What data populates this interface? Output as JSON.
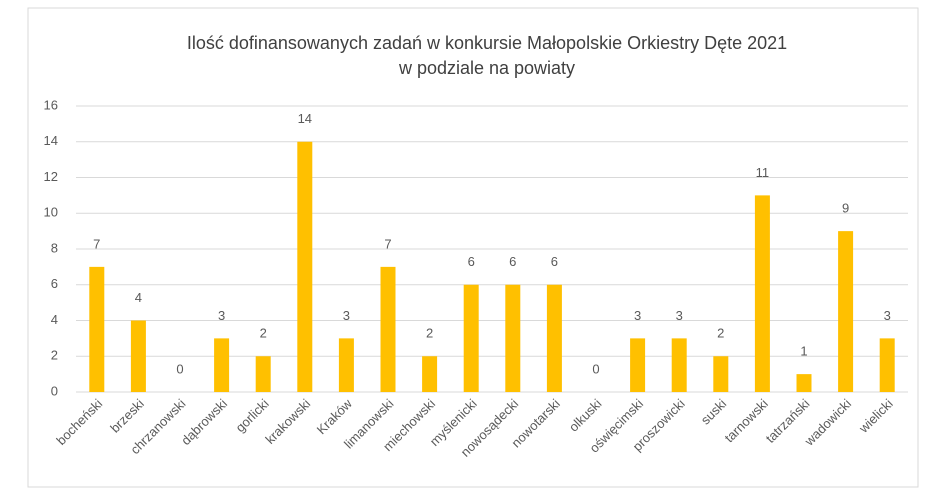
{
  "chart_data": {
    "type": "bar",
    "title": [
      "Ilość dofinansowanych zadań w konkursie Małopolskie Orkiestry Dęte 2021",
      "w podziale na powiaty"
    ],
    "categories": [
      "bocheński",
      "brzeski",
      "chrzanowski",
      "dąbrowski",
      "gorlicki",
      "krakowski",
      "Kraków",
      "limanowski",
      "miechowski",
      "myślenicki",
      "nowosądecki",
      "nowotarski",
      "olkuski",
      "oświęcimski",
      "proszowicki",
      "suski",
      "tarnowski",
      "tatrzański",
      "wadowicki",
      "wielicki"
    ],
    "values": [
      7,
      4,
      0,
      3,
      2,
      14,
      3,
      7,
      2,
      6,
      6,
      6,
      0,
      3,
      3,
      2,
      11,
      1,
      9,
      3
    ],
    "color": "#ffc000",
    "ylim": [
      0,
      16
    ],
    "yticks": [
      0,
      2,
      4,
      6,
      8,
      10,
      12,
      14,
      16
    ],
    "grid": true
  }
}
